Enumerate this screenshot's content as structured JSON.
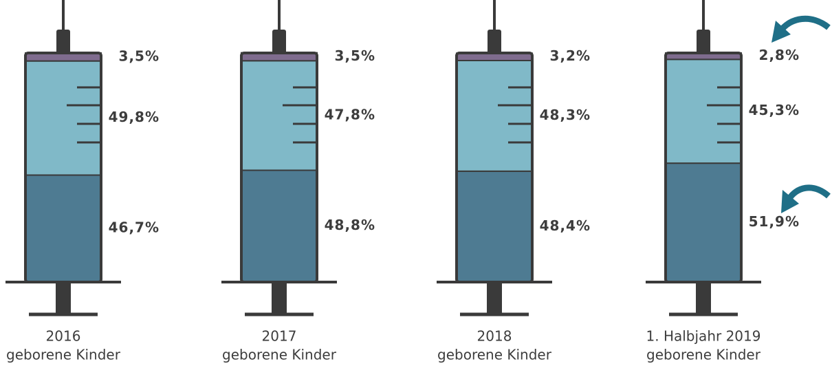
{
  "chart_data": {
    "type": "bar",
    "stacked": true,
    "categories": [
      [
        "2016",
        "geborene Kinder"
      ],
      [
        "2017",
        "geborene Kinder"
      ],
      [
        "2018",
        "geborene Kinder"
      ],
      [
        "1. Halbjahr 2019",
        "geborene Kinder"
      ]
    ],
    "series": [
      {
        "color": "#4e7b92",
        "values": [
          46.7,
          48.8,
          48.4,
          51.9
        ],
        "value_labels": [
          "46,7%",
          "48,8%",
          "48,4%",
          "51,9%"
        ]
      },
      {
        "color": "#80b9c8",
        "values": [
          49.8,
          47.8,
          48.3,
          45.3
        ],
        "value_labels": [
          "49,8%",
          "47,8%",
          "48,3%",
          "45,3%"
        ]
      },
      {
        "color": "#7f6c8e",
        "values": [
          3.5,
          3.5,
          3.2,
          2.8
        ],
        "value_labels": [
          "3,5%",
          "3,5%",
          "3,2%",
          "2,8%"
        ]
      }
    ],
    "ylim": [
      0,
      100
    ]
  }
}
